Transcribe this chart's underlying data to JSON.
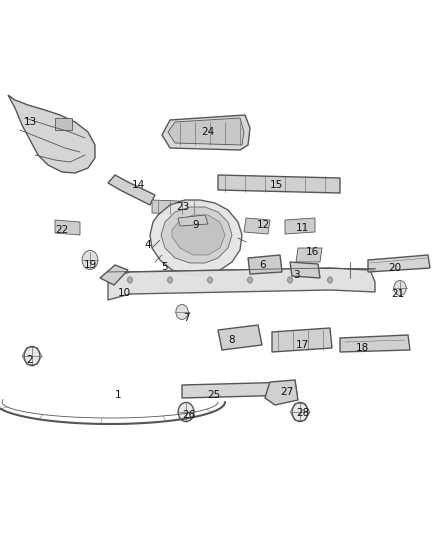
{
  "bg_color": "#ffffff",
  "fig_width": 4.38,
  "fig_height": 5.33,
  "dpi": 100,
  "line_color": "#555555",
  "label_fontsize": 7.5,
  "labels": [
    {
      "num": "1",
      "ix": 118,
      "iy": 395
    },
    {
      "num": "2",
      "ix": 30,
      "iy": 360
    },
    {
      "num": "3",
      "ix": 296,
      "iy": 275
    },
    {
      "num": "4",
      "ix": 148,
      "iy": 245
    },
    {
      "num": "5",
      "ix": 165,
      "iy": 267
    },
    {
      "num": "6",
      "ix": 263,
      "iy": 265
    },
    {
      "num": "7",
      "ix": 186,
      "iy": 318
    },
    {
      "num": "8",
      "ix": 232,
      "iy": 340
    },
    {
      "num": "9",
      "ix": 196,
      "iy": 225
    },
    {
      "num": "10",
      "ix": 124,
      "iy": 293
    },
    {
      "num": "11",
      "ix": 302,
      "iy": 228
    },
    {
      "num": "12",
      "ix": 263,
      "iy": 225
    },
    {
      "num": "13",
      "ix": 30,
      "iy": 122
    },
    {
      "num": "14",
      "ix": 138,
      "iy": 185
    },
    {
      "num": "15",
      "ix": 276,
      "iy": 185
    },
    {
      "num": "16",
      "ix": 312,
      "iy": 252
    },
    {
      "num": "17",
      "ix": 302,
      "iy": 345
    },
    {
      "num": "18",
      "ix": 362,
      "iy": 348
    },
    {
      "num": "19",
      "ix": 90,
      "iy": 265
    },
    {
      "num": "20",
      "ix": 395,
      "iy": 268
    },
    {
      "num": "21",
      "ix": 398,
      "iy": 294
    },
    {
      "num": "22",
      "ix": 62,
      "iy": 230
    },
    {
      "num": "23",
      "ix": 183,
      "iy": 207
    },
    {
      "num": "24",
      "ix": 208,
      "iy": 132
    },
    {
      "num": "25",
      "ix": 214,
      "iy": 395
    },
    {
      "num": "26",
      "ix": 189,
      "iy": 415
    },
    {
      "num": "27",
      "ix": 287,
      "iy": 392
    },
    {
      "num": "28",
      "ix": 303,
      "iy": 413
    }
  ]
}
